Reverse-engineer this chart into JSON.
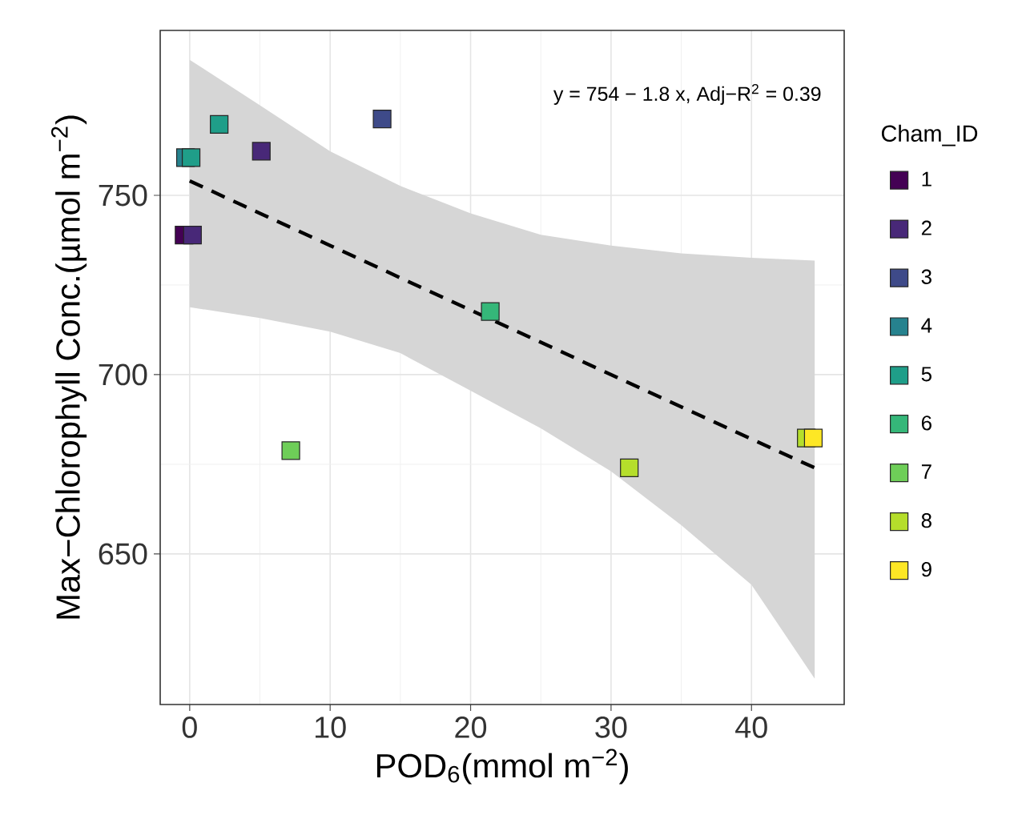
{
  "chart_data": {
    "type": "scatter",
    "xlabel": "POD$_{6}$(mmol m$^{−2}$)",
    "ylabel": "Max−Chlorophyll Conc.(µmol m$^{−2}$)",
    "legend_title": "Cham_ID",
    "annotations": [
      "y = 754 − 1.8 x,  Adj−R$^{2}$ = 0.39"
    ],
    "xlim": [
      -2.1,
      46.6
    ],
    "ylim": [
      608,
      796
    ],
    "xticks": [
      0,
      10,
      20,
      30,
      40
    ],
    "yticks": [
      650,
      700,
      750
    ],
    "grid": true,
    "legend": "right",
    "marker": "square",
    "series": [
      {
        "name": "1",
        "color": "#440154",
        "x": [
          -0.4
        ],
        "values": [
          738.9
        ]
      },
      {
        "name": "2",
        "color": "#482878",
        "x": [
          0.2,
          5.1
        ],
        "values": [
          738.9,
          762.3
        ]
      },
      {
        "name": "3",
        "color": "#3e4a89",
        "x": [
          13.7
        ],
        "values": [
          771.3
        ]
      },
      {
        "name": "4",
        "color": "#26828e",
        "x": [
          -0.3
        ],
        "values": [
          760.5
        ]
      },
      {
        "name": "5",
        "color": "#1f9e89",
        "x": [
          0.1,
          2.1
        ],
        "values": [
          760.5,
          769.8
        ]
      },
      {
        "name": "6",
        "color": "#35b779",
        "x": [
          21.4
        ],
        "values": [
          717.6
        ]
      },
      {
        "name": "7",
        "color": "#6ece58",
        "x": [
          7.2
        ],
        "values": [
          678.8
        ]
      },
      {
        "name": "8",
        "color": "#b5de2b",
        "x": [
          31.3,
          43.9
        ],
        "values": [
          674.0,
          682.3
        ]
      },
      {
        "name": "9",
        "color": "#fde725",
        "x": [
          44.4
        ],
        "values": [
          682.3
        ]
      },
      {
        "type": "line",
        "color": "#000000",
        "line_style": "dashed",
        "marker": "none",
        "x": [
          0,
          5,
          10,
          15,
          20,
          25,
          30,
          35,
          40,
          44.5
        ],
        "values": [
          754,
          745,
          736,
          727,
          718,
          709,
          700,
          691,
          682,
          674
        ],
        "lower": [
          718.8,
          715.8,
          712.0,
          706.0,
          695.5,
          685.0,
          673.0,
          658.0,
          641.4,
          615.2
        ],
        "upper": [
          787.8,
          775.1,
          762.3,
          752.6,
          745.0,
          739.0,
          736.0,
          733.8,
          732.6,
          731.8
        ]
      }
    ]
  }
}
